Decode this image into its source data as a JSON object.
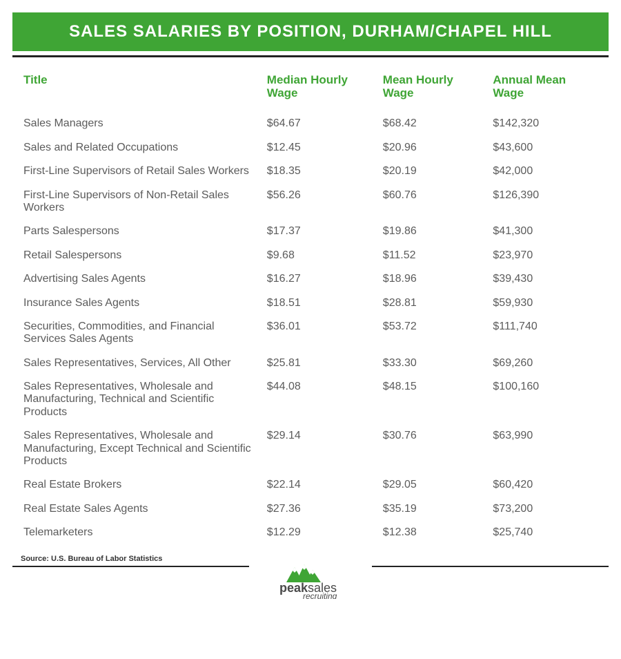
{
  "header": {
    "title": "SALES SALARIES BY POSITION, DURHAM/CHAPEL HILL",
    "bg_color": "#3fa535",
    "text_color": "#ffffff"
  },
  "table": {
    "type": "table",
    "accent_color": "#3fa535",
    "text_color": "#5b5b5b",
    "columns": [
      {
        "label": "Title",
        "width_pct": 42
      },
      {
        "label": "Median Hourly Wage",
        "width_pct": 20
      },
      {
        "label": "Mean Hourly Wage",
        "width_pct": 19
      },
      {
        "label": "Annual Mean Wage",
        "width_pct": 19
      }
    ],
    "rows": [
      [
        "Sales Managers",
        "$64.67",
        "$68.42",
        "$142,320"
      ],
      [
        "Sales and Related Occupations",
        "$12.45",
        "$20.96",
        "$43,600"
      ],
      [
        "First-Line Supervisors of Retail Sales Workers",
        "$18.35",
        "$20.19",
        "$42,000"
      ],
      [
        "First-Line Supervisors of Non-Retail Sales Workers",
        "$56.26",
        "$60.76",
        "$126,390"
      ],
      [
        "Parts Salespersons",
        "$17.37",
        "$19.86",
        "$41,300"
      ],
      [
        "Retail Salespersons",
        "$9.68",
        "$11.52",
        "$23,970"
      ],
      [
        "Advertising Sales Agents",
        "$16.27",
        "$18.96",
        "$39,430"
      ],
      [
        "Insurance Sales Agents",
        "$18.51",
        "$28.81",
        "$59,930"
      ],
      [
        "Securities, Commodities, and Financial Services Sales Agents",
        "$36.01",
        "$53.72",
        "$111,740"
      ],
      [
        "Sales Representatives, Services, All Other",
        "$25.81",
        "$33.30",
        "$69,260"
      ],
      [
        "Sales Representatives, Wholesale and Manufacturing, Technical and Scientific Products",
        "$44.08",
        "$48.15",
        "$100,160"
      ],
      [
        "Sales Representatives, Wholesale and Manufacturing, Except Technical and Scientific Products",
        "$29.14",
        "$30.76",
        "$63,990"
      ],
      [
        "Real Estate Brokers",
        "$22.14",
        "$29.05",
        "$60,420"
      ],
      [
        "Real Estate Sales Agents",
        "$27.36",
        "$35.19",
        "$73,200"
      ],
      [
        "Telemarketers",
        "$12.29",
        "$12.38",
        "$25,740"
      ]
    ]
  },
  "source": {
    "label": "Source: U.S. Bureau of Labor Statistics"
  },
  "logo": {
    "line1_bold": "peak",
    "line1_rest": "sales",
    "line2": "recruiting",
    "mountain_color": "#3fa535",
    "text_color": "#4a4a4a"
  }
}
